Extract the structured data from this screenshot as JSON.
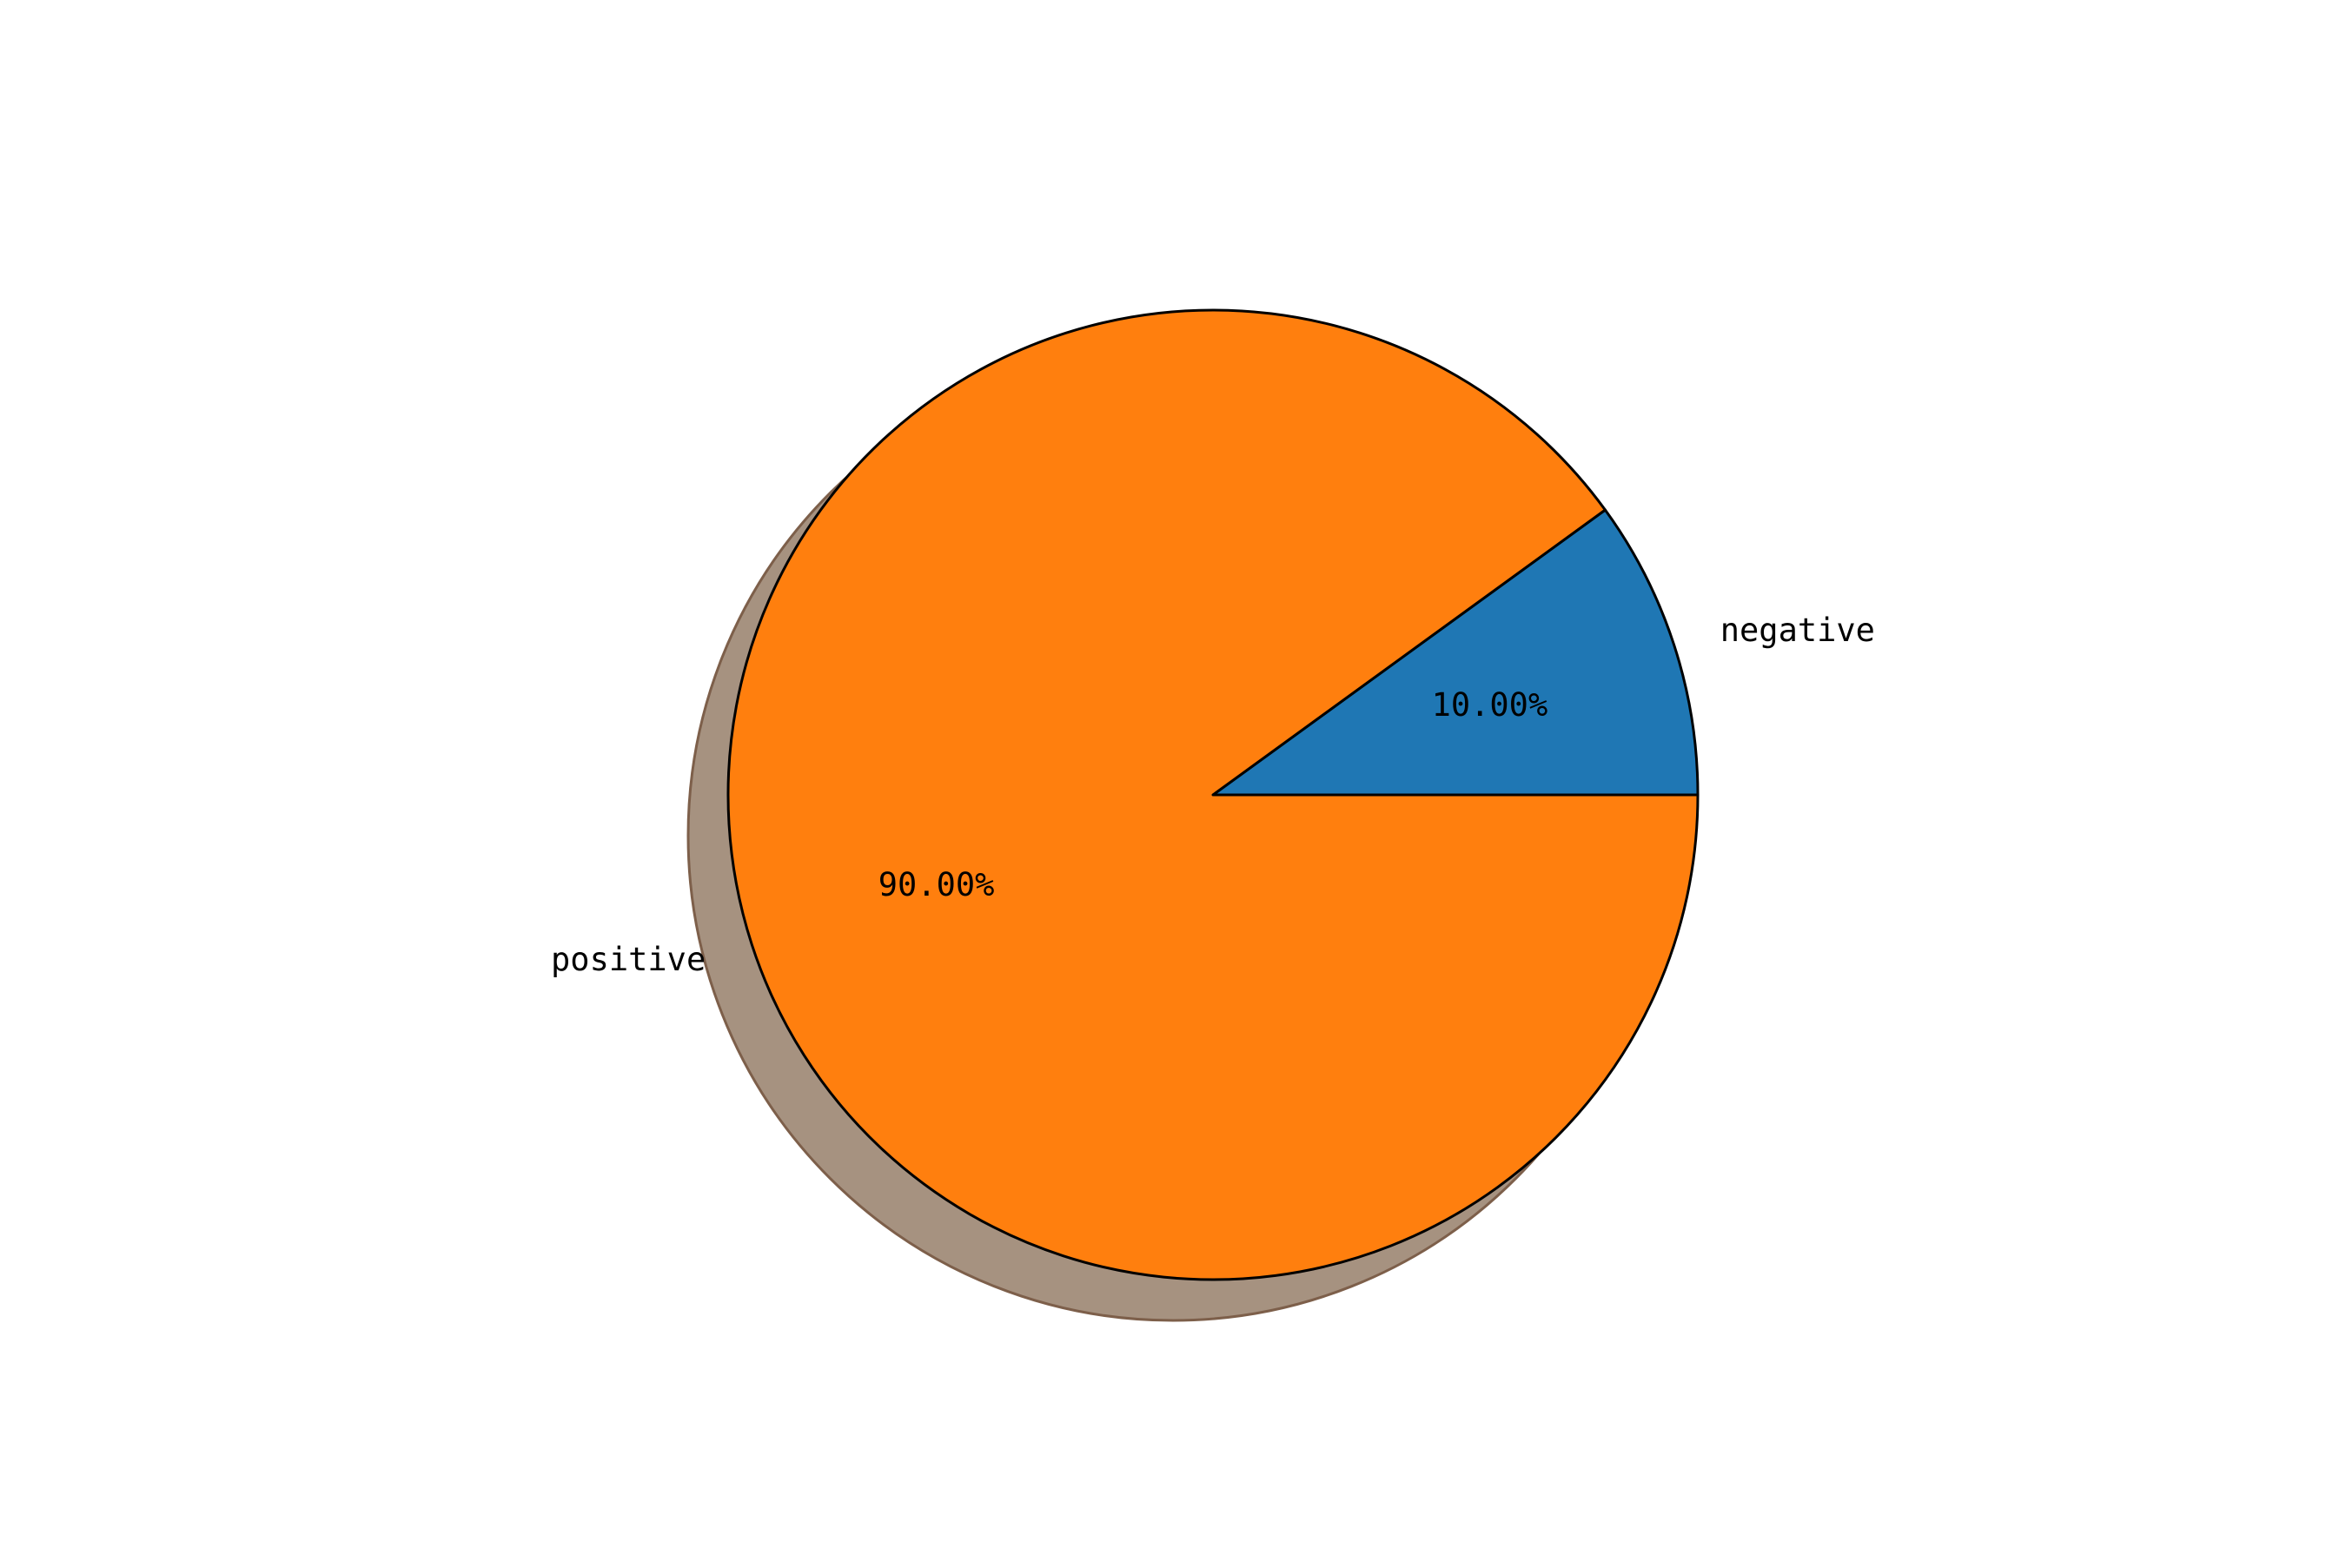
{
  "chart_data": {
    "type": "pie",
    "title": "",
    "slices": [
      {
        "label": "negative",
        "value": 10.0,
        "pct_label": "10.00%",
        "color": "#1f77b4"
      },
      {
        "label": "positive",
        "value": 90.0,
        "pct_label": "90.00%",
        "color": "#ff7f0e"
      }
    ],
    "start_angle_deg": 0,
    "direction": "counterclockwise",
    "shadow": true,
    "shadow_color": "#a69280",
    "edge_color": "#000000"
  }
}
